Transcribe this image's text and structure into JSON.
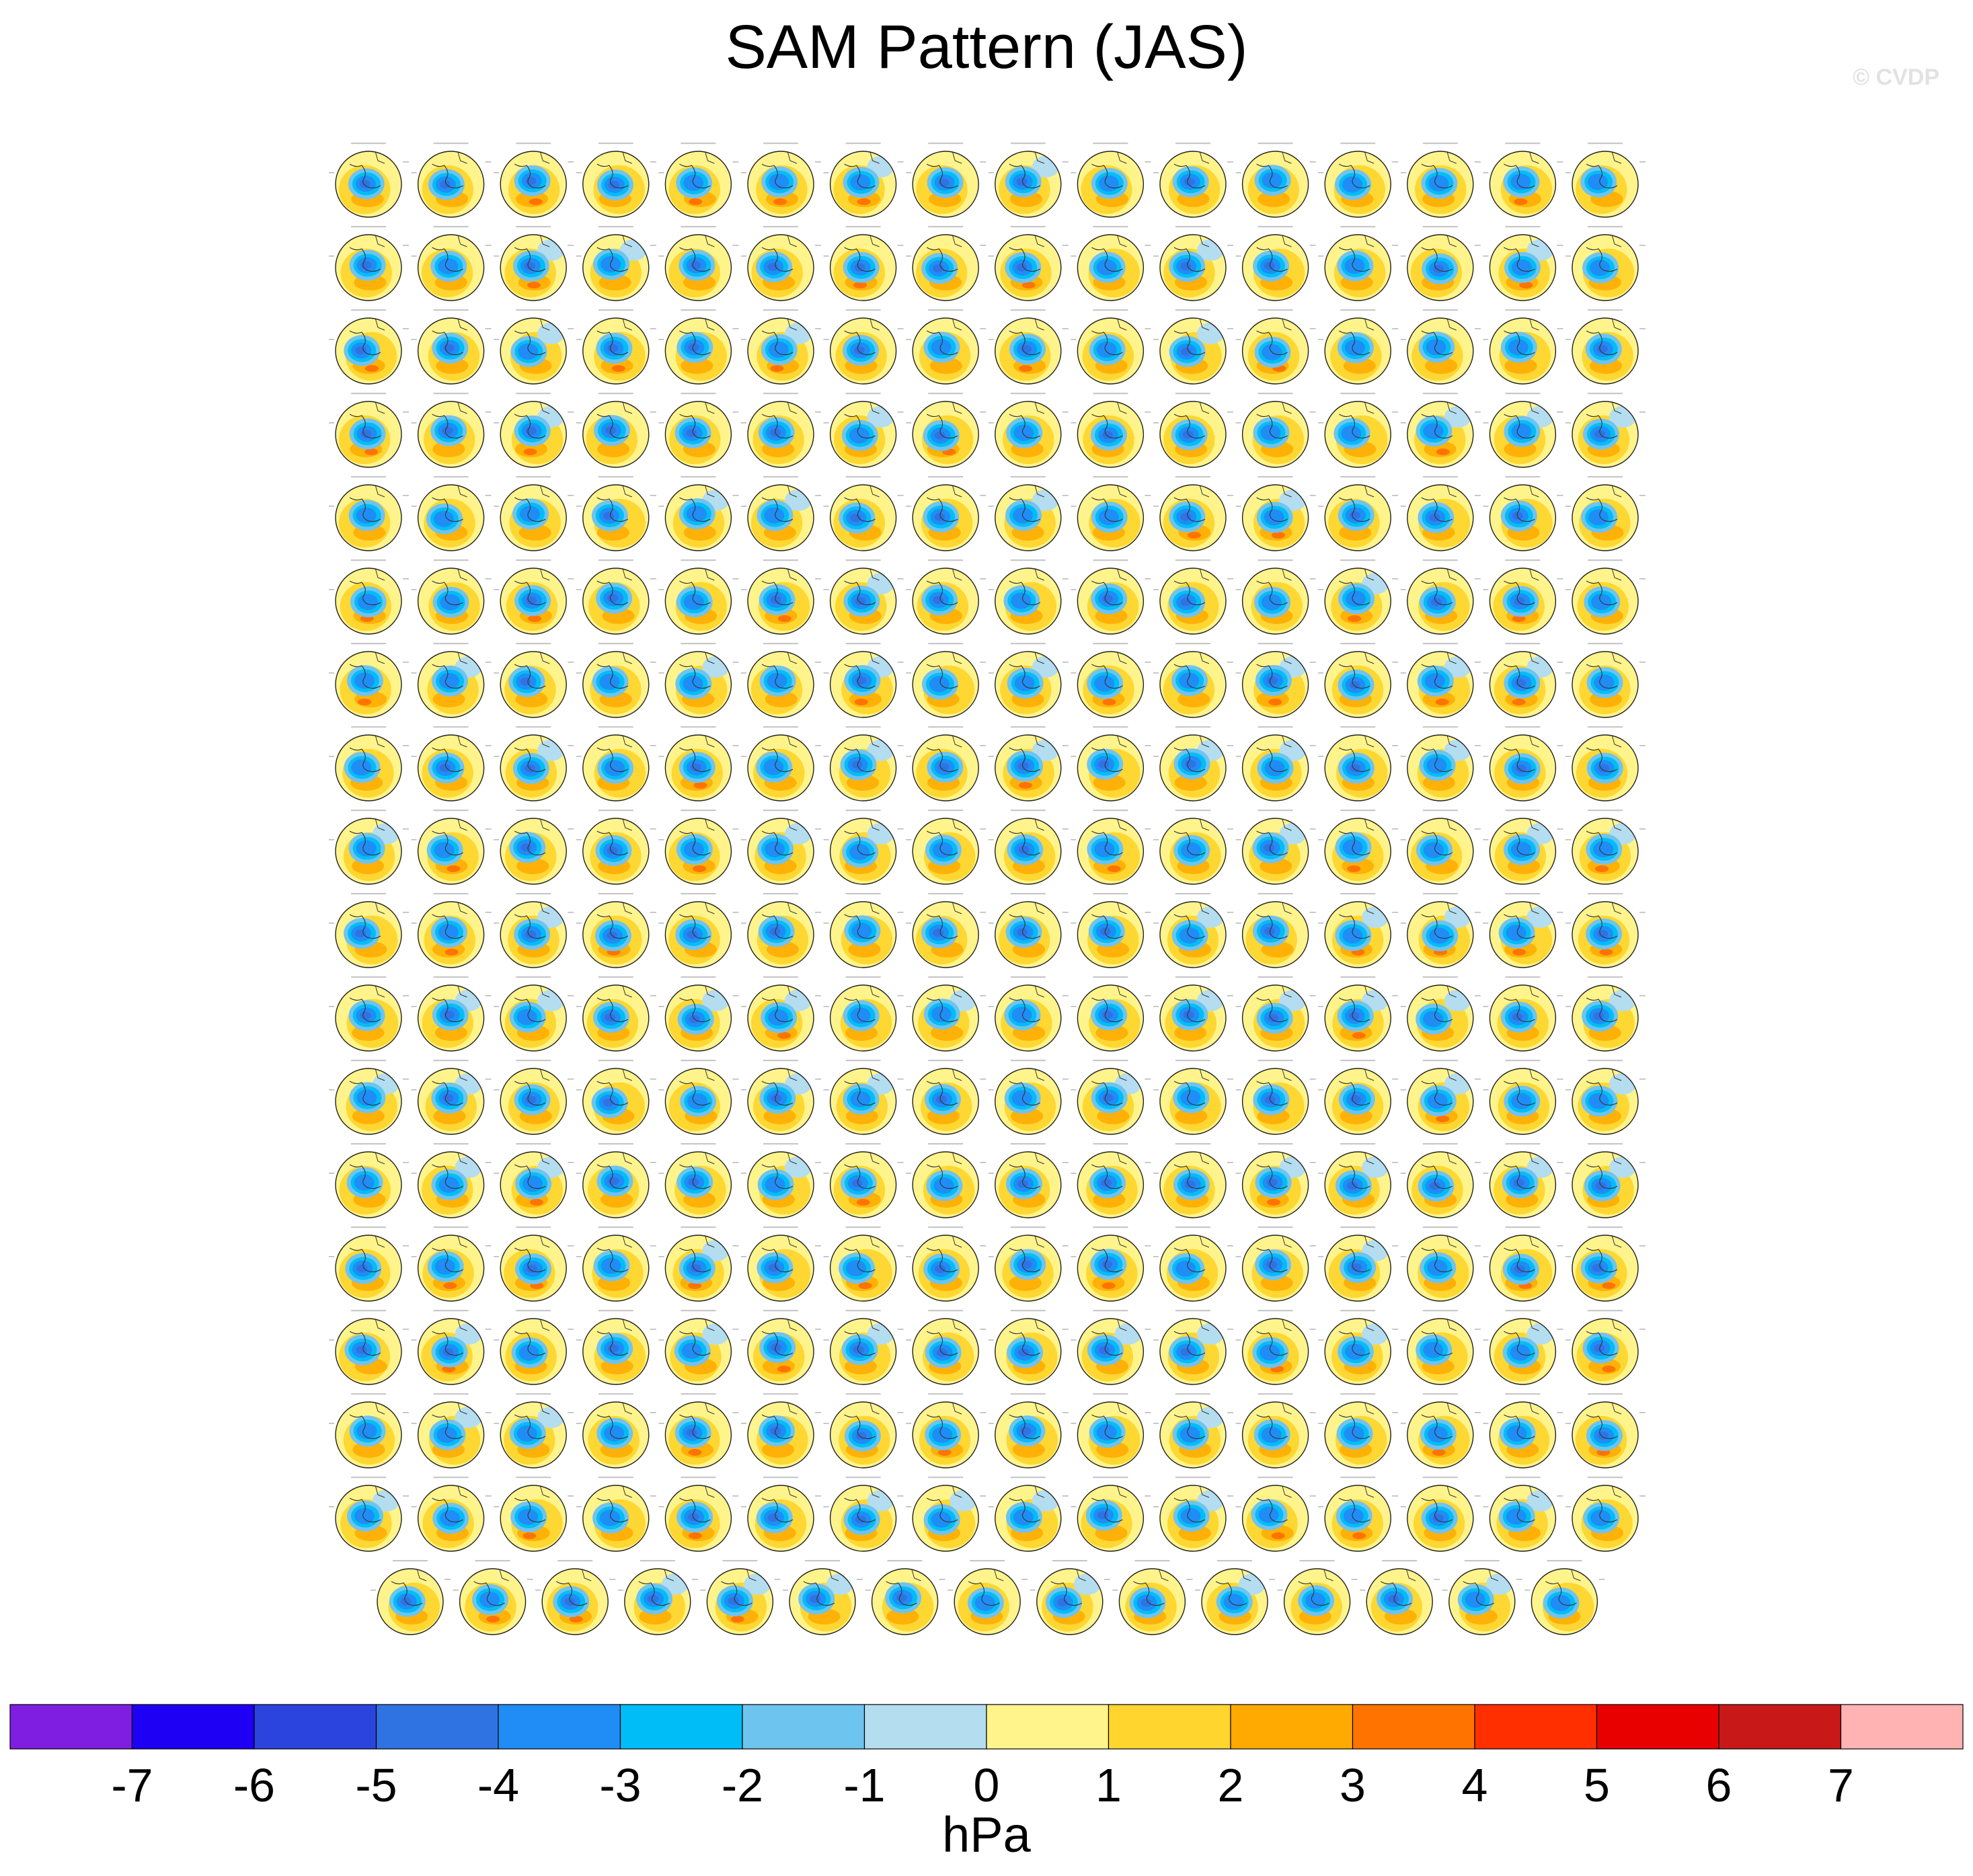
{
  "title": "SAM Pattern (JAS)",
  "watermark": "© CVDP",
  "chart_data": {
    "type": "heatmap",
    "description_of_panels": "small polar-stereographic maps of the Southern Hemisphere SAM regression pattern, one per model/ensemble member",
    "panel_layout": {
      "rows": 18,
      "columns_full_rows": 16,
      "last_row_count": 15,
      "total_panels": 287
    },
    "colorbar": {
      "units": "hPa",
      "tick_labels": [
        "-7",
        "-6",
        "-5",
        "-4",
        "-3",
        "-2",
        "-1",
        "0",
        "1",
        "2",
        "3",
        "4",
        "5",
        "6",
        "7"
      ],
      "colors": [
        "#7f1ee0",
        "#1e00f5",
        "#2b44de",
        "#2f73e2",
        "#1f8df5",
        "#00bdf7",
        "#6dc4ef",
        "#b5ddf0",
        "#fff48c",
        "#ffd52e",
        "#ffaa00",
        "#ff7300",
        "#ff2f00",
        "#e80000",
        "#c81818",
        "#ffb3b3"
      ]
    }
  }
}
